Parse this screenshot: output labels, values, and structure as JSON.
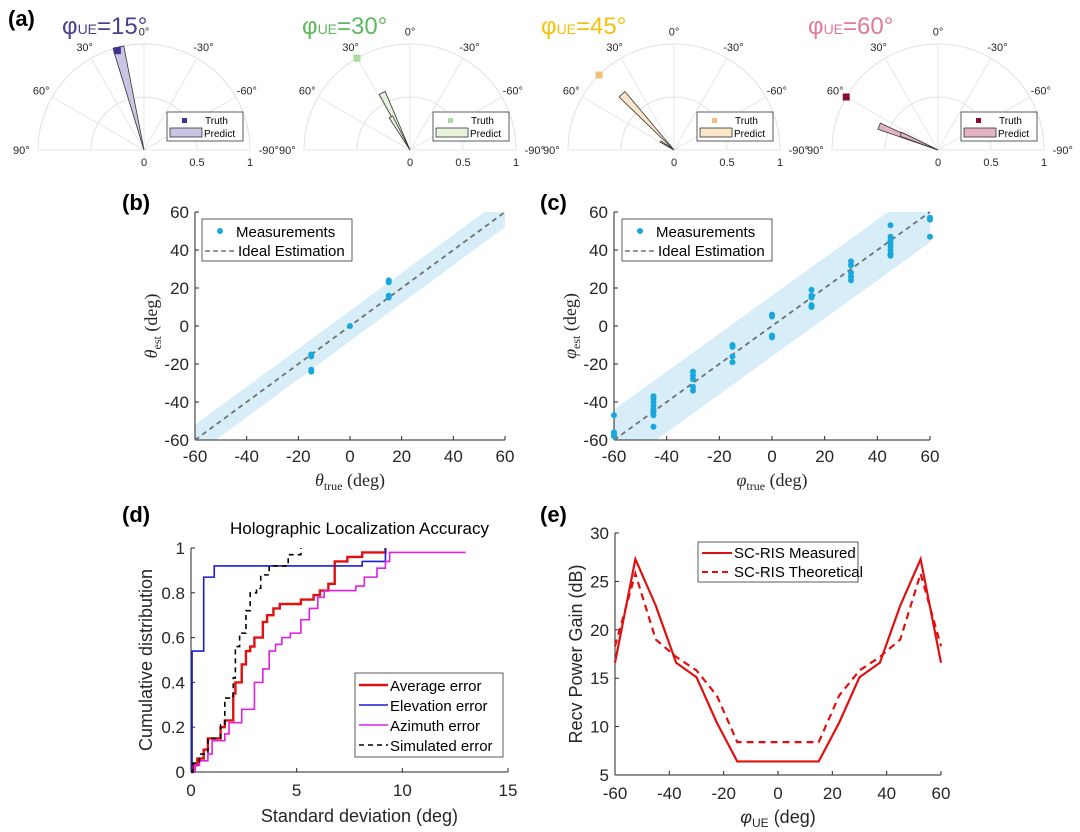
{
  "panel_labels": {
    "a": "(a)",
    "b": "(b)",
    "c": "(c)",
    "d": "(d)",
    "e": "(e)"
  },
  "chart_data": [
    {
      "id": "a",
      "type": "polar",
      "description": "Angular spectrum estimate vs truth for four UE azimuths",
      "theta_ticks": [
        "0°",
        "30°",
        "60°",
        "90°",
        "-30°",
        "-60°",
        "-90°"
      ],
      "theta_tick_values": [
        0,
        30,
        60,
        90,
        -30,
        -60,
        -90
      ],
      "r_ticks": [
        "0",
        "0.5",
        "1"
      ],
      "r_tick_values": [
        0,
        0.5,
        1
      ],
      "rlim": [
        0,
        1
      ],
      "legend": {
        "truth": "Truth",
        "predict": "Predict",
        "position": "bottom-right"
      },
      "subplots": [
        {
          "title_prefix": "φ",
          "title_sub": "UE",
          "title_suffix": "=15°",
          "color": "#4b3f8f",
          "fill": "#c9c6e3",
          "truth_color": "#3f3391",
          "truth": {
            "angle": 15,
            "r": 0.97
          },
          "predict_wedges": [
            {
              "angle_from": 11,
              "angle_to": 17,
              "r": 1.0
            }
          ]
        },
        {
          "title_prefix": "φ",
          "title_sub": "UE",
          "title_suffix": "=30°",
          "color": "#5fb85f",
          "fill": "#e6f2dc",
          "truth_color": "#a8dba0",
          "truth": {
            "angle": 30,
            "r": 1.0
          },
          "predict_wedges": [
            {
              "angle_from": 23,
              "angle_to": 29,
              "r": 0.6
            },
            {
              "angle_from": 27,
              "angle_to": 33,
              "r": 0.36
            }
          ]
        },
        {
          "title_prefix": "φ",
          "title_sub": "UE",
          "title_suffix": "=45°",
          "color": "#f2c20c",
          "fill": "#fbe6c8",
          "truth_color": "#f0c080",
          "truth": {
            "angle": 45,
            "r": 1.0
          },
          "predict_wedges": [
            {
              "angle_from": 40,
              "angle_to": 46,
              "r": 0.72
            },
            {
              "angle_from": 55,
              "angle_to": 60,
              "r": 0.15
            }
          ]
        },
        {
          "title_prefix": "φ",
          "title_sub": "UE",
          "title_suffix": "=60°",
          "color": "#e07a99",
          "fill": "#e4b3c4",
          "truth_color": "#8b0a30",
          "truth": {
            "angle": 60,
            "r": 1.0
          },
          "predict_wedges": [
            {
              "angle_from": 65,
              "angle_to": 71,
              "r": 0.6
            },
            {
              "angle_from": 64,
              "angle_to": 70,
              "r": 0.38
            }
          ]
        }
      ]
    },
    {
      "id": "b",
      "type": "scatter",
      "xlabel_symbol": "θ",
      "xlabel_sub": "true",
      "xlabel_unit": "(deg)",
      "ylabel_symbol": "θ",
      "ylabel_sub": "est",
      "ylabel_unit": "(deg)",
      "xlim": [
        -60,
        60
      ],
      "ylim": [
        -60,
        60
      ],
      "ticks": [
        -60,
        -40,
        -20,
        0,
        20,
        40,
        60
      ],
      "legend": {
        "measurements": "Measurements",
        "ideal": "Ideal Estimation",
        "position": "top-left"
      },
      "band_halfwidth": 8,
      "points": [
        [
          -15,
          -15
        ],
        [
          -15,
          -16
        ],
        [
          -15,
          -23
        ],
        [
          -15,
          -24
        ],
        [
          0,
          0
        ],
        [
          15,
          15
        ],
        [
          15,
          16
        ],
        [
          15,
          23
        ],
        [
          15,
          24
        ]
      ],
      "colors": {
        "points": "#1aa7dc",
        "band": "#d7eef9",
        "ideal": "#707070"
      }
    },
    {
      "id": "c",
      "type": "scatter",
      "xlabel_symbol": "φ",
      "xlabel_sub": "true",
      "xlabel_unit": "(deg)",
      "ylabel_symbol": "φ",
      "ylabel_sub": "est",
      "ylabel_unit": "(deg)",
      "xlim": [
        -60,
        60
      ],
      "ylim": [
        -60,
        60
      ],
      "ticks": [
        -60,
        -40,
        -20,
        0,
        20,
        40,
        60
      ],
      "legend": {
        "measurements": "Measurements",
        "ideal": "Ideal Estimation",
        "position": "top-left"
      },
      "band_halfwidth": 16,
      "points": [
        [
          -60,
          -47
        ],
        [
          -60,
          -56
        ],
        [
          -60,
          -57
        ],
        [
          -60,
          -58
        ],
        [
          -45,
          -37
        ],
        [
          -45,
          -38
        ],
        [
          -45,
          -40
        ],
        [
          -45,
          -42
        ],
        [
          -45,
          -44
        ],
        [
          -45,
          -45
        ],
        [
          -45,
          -47
        ],
        [
          -45,
          -53
        ],
        [
          -30,
          -24
        ],
        [
          -30,
          -26
        ],
        [
          -30,
          -28
        ],
        [
          -30,
          -32
        ],
        [
          -30,
          -34
        ],
        [
          -15,
          -10
        ],
        [
          -15,
          -11
        ],
        [
          -15,
          -16
        ],
        [
          -15,
          -19
        ],
        [
          0,
          5
        ],
        [
          0,
          6
        ],
        [
          0,
          -5
        ],
        [
          0,
          -6
        ],
        [
          15,
          10
        ],
        [
          15,
          11
        ],
        [
          15,
          15
        ],
        [
          15,
          16
        ],
        [
          15,
          19
        ],
        [
          30,
          24
        ],
        [
          30,
          26
        ],
        [
          30,
          28
        ],
        [
          30,
          32
        ],
        [
          30,
          34
        ],
        [
          45,
          37
        ],
        [
          45,
          38
        ],
        [
          45,
          40
        ],
        [
          45,
          42
        ],
        [
          45,
          44
        ],
        [
          45,
          45
        ],
        [
          45,
          47
        ],
        [
          45,
          53
        ],
        [
          60,
          47
        ],
        [
          60,
          56
        ],
        [
          60,
          57
        ]
      ],
      "colors": {
        "points": "#1aa7dc",
        "band": "#d7eef9",
        "ideal": "#707070"
      }
    },
    {
      "id": "d",
      "type": "line",
      "subtype": "cdf-step",
      "title": "Holographic Localization Accuracy",
      "xlabel": "Standard deviation (deg)",
      "ylabel": "Cumulative distribution",
      "xlim": [
        0,
        15
      ],
      "ylim": [
        0,
        1
      ],
      "xticks": [
        0,
        5,
        10,
        15
      ],
      "yticks": [
        0,
        0.2,
        0.4,
        0.6,
        0.8,
        1
      ],
      "ytick_labels": [
        "0",
        "0.2",
        "0.4",
        "0.6",
        "0.8",
        "1"
      ],
      "legend_position": "bottom-right",
      "series": [
        {
          "name": "Average error",
          "color": "#e01010",
          "dash": "solid",
          "x": [
            0,
            0.1,
            0.3,
            0.6,
            0.8,
            1.4,
            1.6,
            2.0,
            2.1,
            2.4,
            2.6,
            2.8,
            3.0,
            3.4,
            3.6,
            3.9,
            4.2,
            4.6,
            5.2,
            5.8,
            6.1,
            6.5,
            6.8,
            7.4,
            8.1,
            9.2
          ],
          "y": [
            0,
            0.03,
            0.06,
            0.1,
            0.15,
            0.2,
            0.23,
            0.35,
            0.4,
            0.48,
            0.54,
            0.56,
            0.6,
            0.67,
            0.7,
            0.73,
            0.75,
            0.75,
            0.77,
            0.79,
            0.81,
            0.84,
            0.94,
            0.96,
            0.98,
            1.0
          ]
        },
        {
          "name": "Elevation error",
          "color": "#1c1cd0",
          "dash": "solid",
          "x": [
            0,
            0.05,
            0.6,
            1.1,
            8.0,
            8.1,
            9.2
          ],
          "y": [
            0,
            0.54,
            0.87,
            0.92,
            0.92,
            0.94,
            1.0
          ]
        },
        {
          "name": "Azimuth error",
          "color": "#e020e0",
          "dash": "solid",
          "x": [
            0,
            0.2,
            0.4,
            0.8,
            1.0,
            1.6,
            1.8,
            2.4,
            3.0,
            3.4,
            3.7,
            4.0,
            4.3,
            4.7,
            5.2,
            5.6,
            6.0,
            6.3,
            7.0,
            7.8,
            8.2,
            8.8,
            9.2,
            9.4,
            13.0
          ],
          "y": [
            0,
            0.03,
            0.05,
            0.08,
            0.14,
            0.17,
            0.22,
            0.28,
            0.4,
            0.46,
            0.54,
            0.57,
            0.6,
            0.62,
            0.68,
            0.73,
            0.78,
            0.81,
            0.81,
            0.83,
            0.87,
            0.91,
            0.94,
            0.98,
            0.98
          ]
        },
        {
          "name": "Simulated error",
          "color": "#000000",
          "dash": "dashed",
          "x": [
            0,
            0.1,
            0.4,
            0.8,
            1.4,
            1.6,
            2.0,
            2.1,
            2.3,
            2.6,
            2.8,
            3.1,
            3.3,
            3.7,
            4.0,
            4.6,
            5.2
          ],
          "y": [
            0,
            0.04,
            0.08,
            0.15,
            0.21,
            0.33,
            0.42,
            0.56,
            0.62,
            0.72,
            0.8,
            0.82,
            0.88,
            0.92,
            0.92,
            0.97,
            1.0
          ]
        }
      ]
    },
    {
      "id": "e",
      "type": "line",
      "xlabel_symbol": "φ",
      "xlabel_sub": "UE",
      "xlabel_unit": "(deg)",
      "ylabel": "Recv Power Gain (dB)",
      "xlim": [
        -60,
        60
      ],
      "ylim": [
        5,
        30
      ],
      "xticks": [
        -60,
        -40,
        -20,
        0,
        20,
        40,
        60
      ],
      "yticks": [
        5,
        10,
        15,
        20,
        25,
        30
      ],
      "legend_position": "top-center",
      "x": [
        -60,
        -52.5,
        -45,
        -37.5,
        -30,
        -22.5,
        -15,
        15,
        22.5,
        30,
        37.5,
        45,
        52.5,
        60
      ],
      "series": [
        {
          "name": "SC-RIS Measured",
          "color": "#e01010",
          "dash": "solid",
          "values": [
            16.6,
            27.3,
            22.5,
            16.6,
            15.1,
            10.4,
            6.4,
            6.4,
            10.4,
            15.1,
            16.6,
            22.5,
            27.3,
            16.6
          ]
        },
        {
          "name": "SC-RIS Theoretical",
          "color": "#e01010",
          "dash": "dashed",
          "values": [
            18.3,
            25.8,
            19.0,
            17.2,
            15.8,
            13.2,
            8.4,
            8.4,
            13.2,
            15.8,
            17.2,
            19.0,
            25.8,
            18.3
          ]
        }
      ]
    }
  ]
}
